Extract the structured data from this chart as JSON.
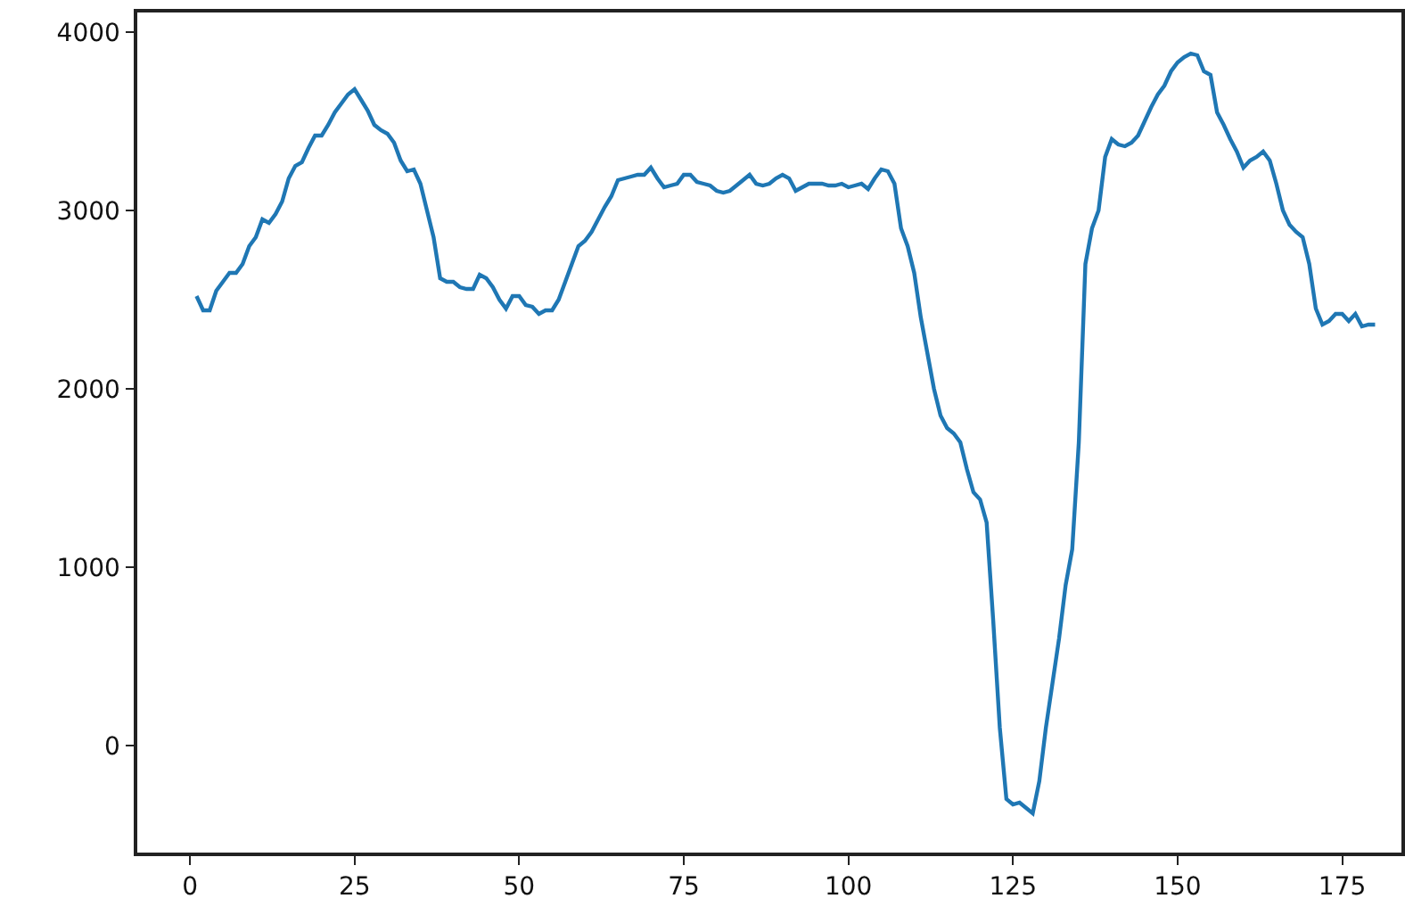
{
  "chart_data": {
    "type": "line",
    "x": [
      1,
      2,
      3,
      4,
      5,
      6,
      7,
      8,
      9,
      10,
      11,
      12,
      13,
      14,
      15,
      16,
      17,
      18,
      19,
      20,
      21,
      22,
      23,
      24,
      25,
      26,
      27,
      28,
      29,
      30,
      31,
      32,
      33,
      34,
      35,
      36,
      37,
      38,
      39,
      40,
      41,
      42,
      43,
      44,
      45,
      46,
      47,
      48,
      49,
      50,
      51,
      52,
      53,
      54,
      55,
      56,
      57,
      58,
      59,
      60,
      61,
      62,
      63,
      64,
      65,
      66,
      67,
      68,
      69,
      70,
      71,
      72,
      73,
      74,
      75,
      76,
      77,
      78,
      79,
      80,
      81,
      82,
      83,
      84,
      85,
      86,
      87,
      88,
      89,
      90,
      91,
      92,
      93,
      94,
      95,
      96,
      97,
      98,
      99,
      100,
      101,
      102,
      103,
      104,
      105,
      106,
      107,
      108,
      109,
      110,
      111,
      112,
      113,
      114,
      115,
      116,
      117,
      118,
      119,
      120,
      121,
      122,
      123,
      124,
      125,
      126,
      127,
      128,
      129,
      130,
      131,
      132,
      133,
      134,
      135,
      136,
      137,
      138,
      139,
      140,
      141,
      142,
      143,
      144,
      145,
      146,
      147,
      148,
      149,
      150,
      151,
      152,
      153,
      154,
      155,
      156,
      157,
      158,
      159,
      160,
      161,
      162,
      163,
      164,
      165,
      166,
      167,
      168,
      169,
      170,
      171,
      172,
      173,
      174,
      175,
      176,
      177,
      178,
      179,
      180
    ],
    "series": [
      {
        "color": "#1f77b4",
        "values": [
          2520,
          2440,
          2440,
          2550,
          2600,
          2650,
          2650,
          2700,
          2800,
          2850,
          2950,
          2930,
          2980,
          3050,
          3180,
          3250,
          3270,
          3350,
          3420,
          3420,
          3480,
          3550,
          3600,
          3650,
          3680,
          3620,
          3560,
          3480,
          3450,
          3430,
          3380,
          3280,
          3220,
          3230,
          3150,
          3000,
          2850,
          2620,
          2600,
          2600,
          2570,
          2560,
          2560,
          2640,
          2620,
          2570,
          2500,
          2450,
          2520,
          2520,
          2470,
          2460,
          2420,
          2440,
          2440,
          2500,
          2600,
          2700,
          2800,
          2830,
          2880,
          2950,
          3020,
          3080,
          3170,
          3180,
          3190,
          3200,
          3200,
          3240,
          3180,
          3130,
          3140,
          3150,
          3200,
          3200,
          3160,
          3150,
          3140,
          3110,
          3100,
          3110,
          3140,
          3170,
          3200,
          3150,
          3140,
          3150,
          3180,
          3200,
          3180,
          3110,
          3130,
          3150,
          3150,
          3150,
          3140,
          3140,
          3150,
          3130,
          3140,
          3150,
          3120,
          3180,
          3230,
          3220,
          3150,
          2900,
          2800,
          2650,
          2400,
          2200,
          2000,
          1850,
          1780,
          1750,
          1700,
          1550,
          1420,
          1380,
          1250,
          700,
          100,
          -300,
          -330,
          -320,
          -350,
          -380,
          -200,
          100,
          350,
          600,
          900,
          1100,
          1700,
          2700,
          2900,
          3000,
          3300,
          3400,
          3370,
          3360,
          3380,
          3420,
          3500,
          3580,
          3650,
          3700,
          3780,
          3830,
          3860,
          3880,
          3870,
          3780,
          3760,
          3550,
          3480,
          3400,
          3330,
          3240,
          3280,
          3300,
          3330,
          3280,
          3150,
          3000,
          2920,
          2880,
          2850,
          2700,
          2450,
          2360,
          2380,
          2420,
          2420,
          2380,
          2420,
          2350,
          2360,
          2360
        ]
      }
    ],
    "xlim": [
      -8,
      184
    ],
    "xticks": [
      0,
      25,
      50,
      75,
      100,
      125,
      150,
      175
    ],
    "ylim": [
      -600,
      4110
    ],
    "yticks": [
      0,
      1000,
      2000,
      3000,
      4000
    ],
    "marker": "none",
    "line_style": "solid"
  }
}
